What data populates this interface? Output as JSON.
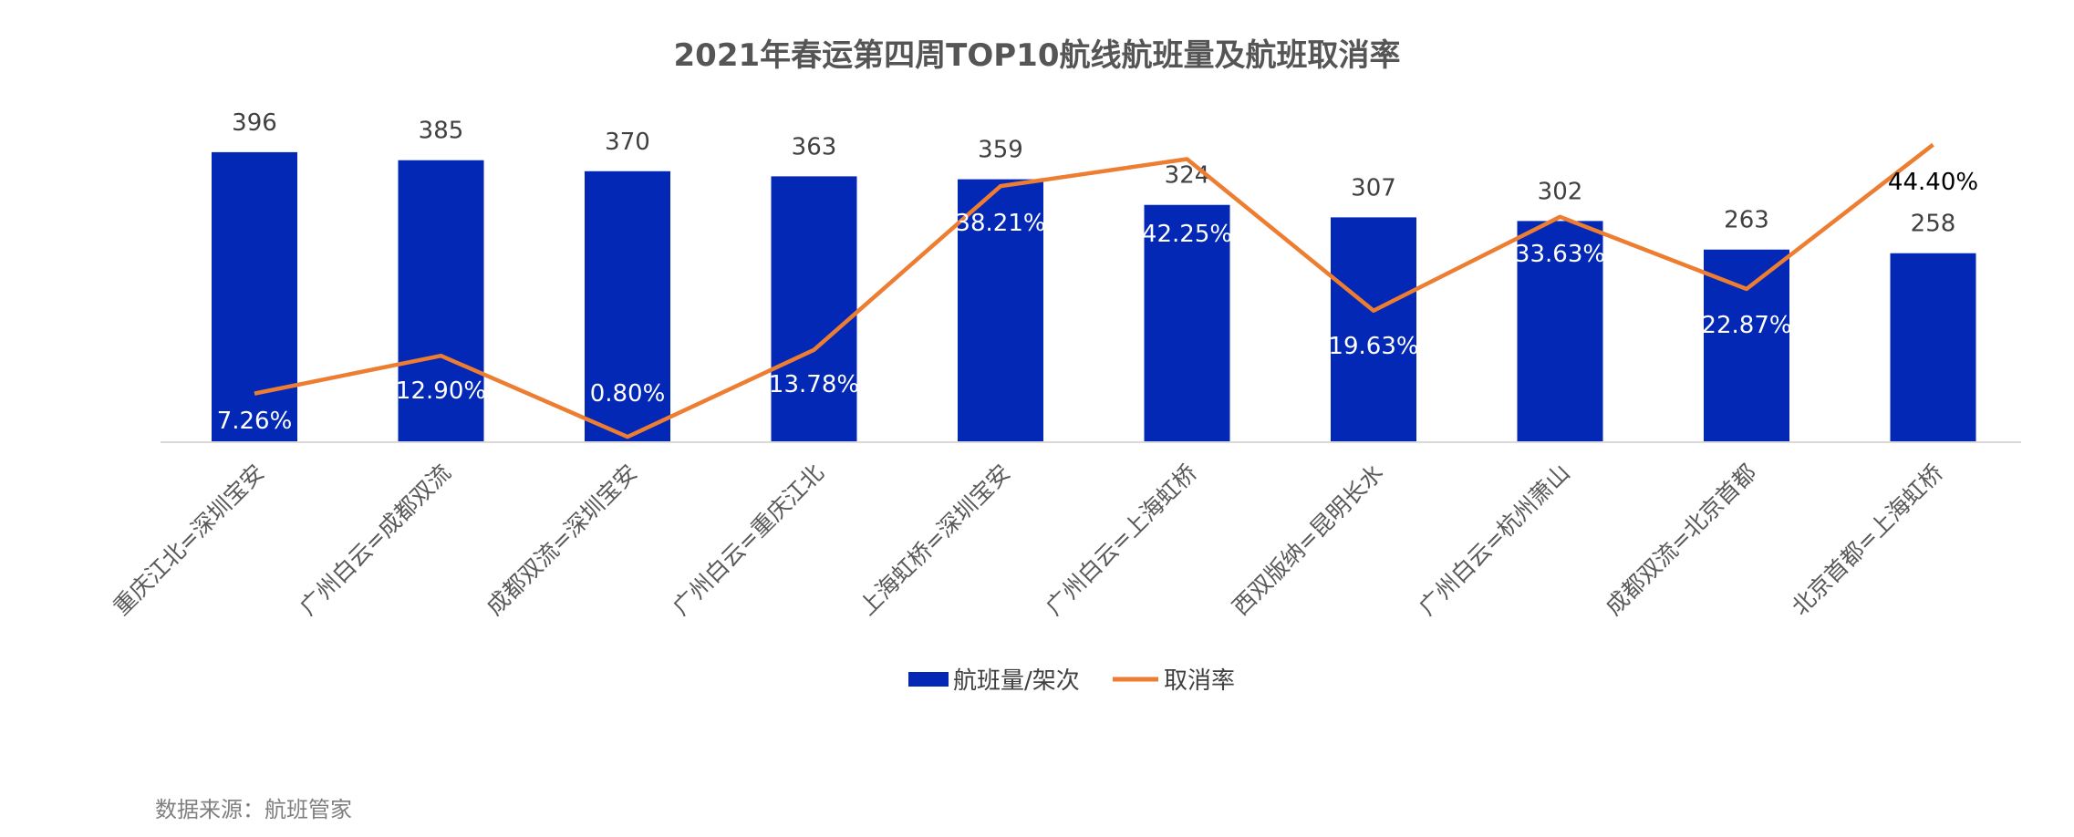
{
  "chart_data": {
    "type": "bar",
    "title": "2021年春运第四周TOP10航线航班量及航班取消率",
    "categories": [
      "重庆江北=深圳宝安",
      "广州白云=成都双流",
      "成都双流=深圳宝安",
      "广州白云=重庆江北",
      "上海虹桥=深圳宝安",
      "广州白云=上海虹桥",
      "西双版纳=昆明长水",
      "广州白云=杭州萧山",
      "成都双流=北京首都",
      "北京首都=上海虹桥"
    ],
    "series": [
      {
        "name": "航班量/架次",
        "type": "bar",
        "color": "#0328B6",
        "values": [
          396,
          385,
          370,
          363,
          359,
          324,
          307,
          302,
          263,
          258
        ],
        "labels": [
          "396",
          "385",
          "370",
          "363",
          "359",
          "324",
          "307",
          "302",
          "263",
          "258"
        ]
      },
      {
        "name": "取消率",
        "type": "line",
        "color": "#ED7D31",
        "values": [
          7.26,
          12.9,
          0.8,
          13.78,
          38.21,
          42.25,
          19.63,
          33.63,
          22.87,
          44.4
        ],
        "labels": [
          "7.26%",
          "12.90%",
          "0.80%",
          "13.78%",
          "38.21%",
          "42.25%",
          "19.63%",
          "33.63%",
          "22.87%",
          "44.40%"
        ]
      }
    ],
    "legend_position": "bottom",
    "grid": false
  },
  "source": "数据来源：航班管家"
}
